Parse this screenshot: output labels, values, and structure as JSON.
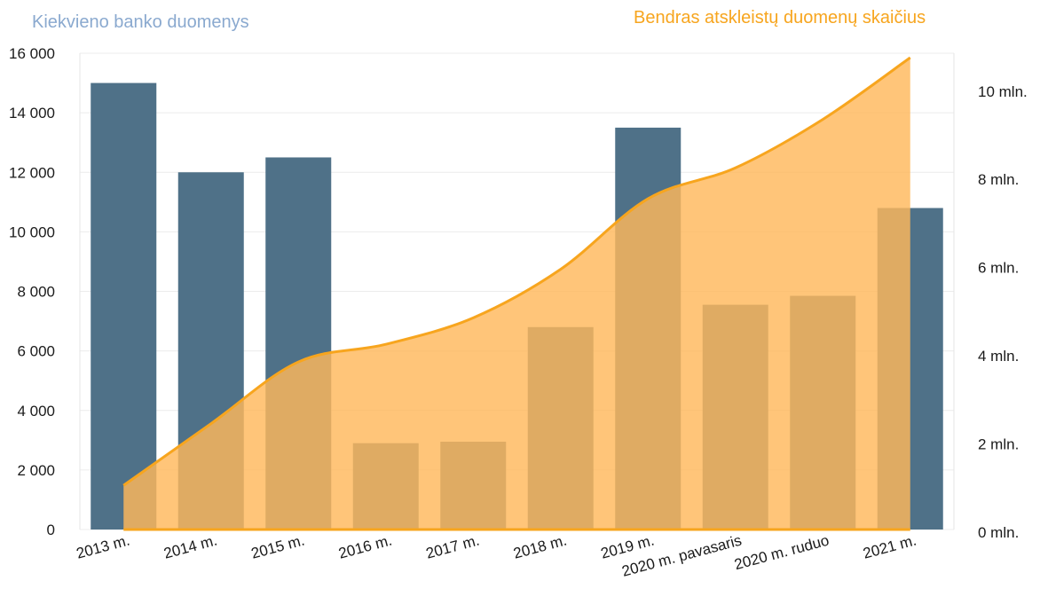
{
  "chart_data": {
    "type": "bar",
    "categories": [
      "2013 m.",
      "2014 m.",
      "2015 m.",
      "2016 m.",
      "2017 m.",
      "2018 m.",
      "2019 m.",
      "2020 m. pavasaris",
      "2020 m. ruduo",
      "2021 m."
    ],
    "series": [
      {
        "name": "Kiekvieno banko duomenys",
        "type": "bar",
        "axis": "left",
        "values": [
          15000,
          12000,
          12500,
          2900,
          2950,
          6800,
          13500,
          7550,
          7850,
          10800
        ],
        "color": "#4f7188"
      },
      {
        "name": "Bendras atskleistų duomenų skaičius",
        "type": "area",
        "axis": "right",
        "values": [
          1000000,
          2400000,
          3800000,
          4200000,
          4800000,
          5900000,
          7500000,
          8200000,
          9300000,
          10700000
        ],
        "color": "#f7a51e",
        "fill": "#ffb85c"
      }
    ],
    "y_left": {
      "ylim": [
        0,
        16000
      ],
      "ticks": [
        "0",
        "2 000",
        "4 000",
        "6 000",
        "8 000",
        "10 000",
        "12 000",
        "14 000",
        "16 000"
      ]
    },
    "y_right": {
      "ylim": [
        0,
        10800000
      ],
      "ticks": [
        "0 mln.",
        "2 mln.",
        "4 mln.",
        "6 mln.",
        "8 mln.",
        "10 mln."
      ]
    },
    "grid": true
  }
}
